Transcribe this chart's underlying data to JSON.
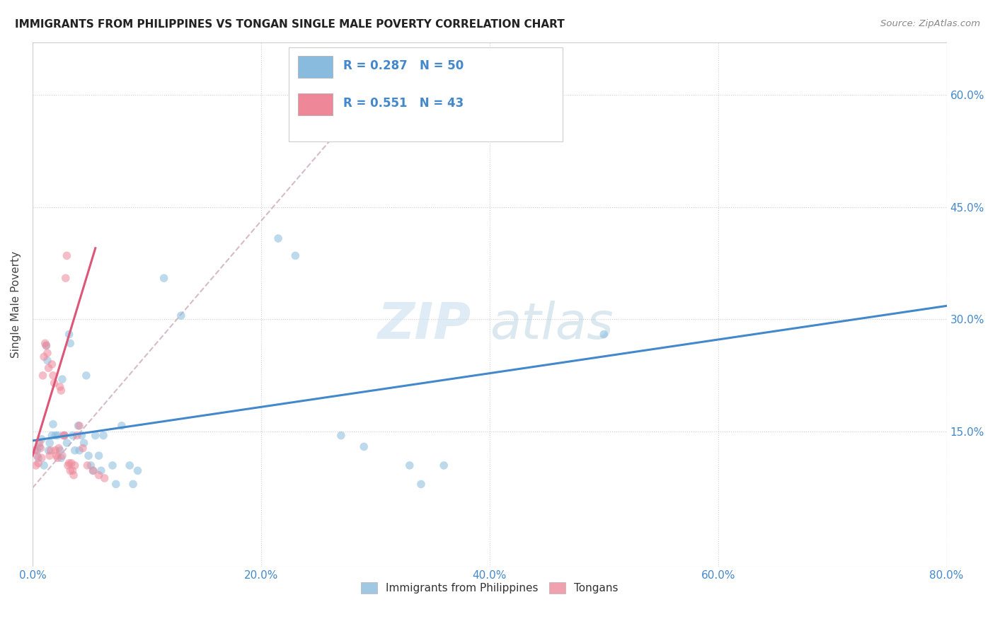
{
  "title": "IMMIGRANTS FROM PHILIPPINES VS TONGAN SINGLE MALE POVERTY CORRELATION CHART",
  "source": "Source: ZipAtlas.com",
  "xlabel_ticks": [
    "0.0%",
    "20.0%",
    "40.0%",
    "60.0%",
    "80.0%"
  ],
  "ylabel_ticks": [
    "15.0%",
    "30.0%",
    "45.0%",
    "60.0%"
  ],
  "ylabel_label": "Single Male Poverty",
  "xlim": [
    0.0,
    0.8
  ],
  "ylim": [
    -0.03,
    0.67
  ],
  "watermark_zip": "ZIP",
  "watermark_atlas": "atlas",
  "legend_entries": [
    {
      "label": "Immigrants from Philippines",
      "color": "#a8c8e8",
      "R": "0.287",
      "N": "50"
    },
    {
      "label": "Tongans",
      "color": "#f4a8b8",
      "R": "0.551",
      "N": "43"
    }
  ],
  "blue_scatter": [
    [
      0.004,
      0.125
    ],
    [
      0.005,
      0.115
    ],
    [
      0.006,
      0.13
    ],
    [
      0.008,
      0.14
    ],
    [
      0.01,
      0.105
    ],
    [
      0.012,
      0.265
    ],
    [
      0.013,
      0.245
    ],
    [
      0.014,
      0.125
    ],
    [
      0.015,
      0.135
    ],
    [
      0.017,
      0.145
    ],
    [
      0.018,
      0.16
    ],
    [
      0.02,
      0.145
    ],
    [
      0.022,
      0.145
    ],
    [
      0.024,
      0.125
    ],
    [
      0.025,
      0.115
    ],
    [
      0.026,
      0.22
    ],
    [
      0.028,
      0.145
    ],
    [
      0.03,
      0.135
    ],
    [
      0.032,
      0.28
    ],
    [
      0.033,
      0.268
    ],
    [
      0.035,
      0.145
    ],
    [
      0.037,
      0.125
    ],
    [
      0.04,
      0.158
    ],
    [
      0.041,
      0.125
    ],
    [
      0.043,
      0.145
    ],
    [
      0.045,
      0.135
    ],
    [
      0.047,
      0.225
    ],
    [
      0.049,
      0.118
    ],
    [
      0.051,
      0.105
    ],
    [
      0.053,
      0.098
    ],
    [
      0.055,
      0.145
    ],
    [
      0.058,
      0.118
    ],
    [
      0.06,
      0.098
    ],
    [
      0.062,
      0.145
    ],
    [
      0.07,
      0.105
    ],
    [
      0.073,
      0.08
    ],
    [
      0.078,
      0.158
    ],
    [
      0.085,
      0.105
    ],
    [
      0.088,
      0.08
    ],
    [
      0.092,
      0.098
    ],
    [
      0.115,
      0.355
    ],
    [
      0.13,
      0.305
    ],
    [
      0.215,
      0.408
    ],
    [
      0.23,
      0.385
    ],
    [
      0.27,
      0.145
    ],
    [
      0.29,
      0.13
    ],
    [
      0.33,
      0.105
    ],
    [
      0.34,
      0.08
    ],
    [
      0.36,
      0.105
    ],
    [
      0.5,
      0.28
    ]
  ],
  "pink_scatter": [
    [
      0.002,
      0.125
    ],
    [
      0.003,
      0.105
    ],
    [
      0.004,
      0.118
    ],
    [
      0.005,
      0.108
    ],
    [
      0.006,
      0.135
    ],
    [
      0.007,
      0.128
    ],
    [
      0.008,
      0.115
    ],
    [
      0.009,
      0.225
    ],
    [
      0.01,
      0.25
    ],
    [
      0.011,
      0.268
    ],
    [
      0.012,
      0.265
    ],
    [
      0.013,
      0.255
    ],
    [
      0.014,
      0.235
    ],
    [
      0.015,
      0.118
    ],
    [
      0.016,
      0.125
    ],
    [
      0.017,
      0.24
    ],
    [
      0.018,
      0.225
    ],
    [
      0.019,
      0.215
    ],
    [
      0.02,
      0.125
    ],
    [
      0.021,
      0.118
    ],
    [
      0.022,
      0.115
    ],
    [
      0.023,
      0.128
    ],
    [
      0.024,
      0.21
    ],
    [
      0.025,
      0.205
    ],
    [
      0.026,
      0.118
    ],
    [
      0.027,
      0.145
    ],
    [
      0.028,
      0.145
    ],
    [
      0.029,
      0.355
    ],
    [
      0.03,
      0.385
    ],
    [
      0.031,
      0.105
    ],
    [
      0.032,
      0.108
    ],
    [
      0.033,
      0.098
    ],
    [
      0.034,
      0.108
    ],
    [
      0.035,
      0.098
    ],
    [
      0.036,
      0.092
    ],
    [
      0.037,
      0.105
    ],
    [
      0.039,
      0.145
    ],
    [
      0.041,
      0.158
    ],
    [
      0.044,
      0.128
    ],
    [
      0.048,
      0.105
    ],
    [
      0.053,
      0.098
    ],
    [
      0.058,
      0.092
    ],
    [
      0.063,
      0.088
    ]
  ],
  "blue_line": [
    [
      0.0,
      0.138
    ],
    [
      0.8,
      0.318
    ]
  ],
  "pink_line_solid": [
    [
      0.0,
      0.118
    ],
    [
      0.055,
      0.395
    ]
  ],
  "pink_dashed_line": [
    [
      0.0,
      0.075
    ],
    [
      0.32,
      0.645
    ]
  ],
  "grid_yticks": [
    0.15,
    0.3,
    0.45,
    0.6
  ],
  "grid_xticks": [
    0.2,
    0.4,
    0.6,
    0.8
  ],
  "grid_color": "#d0d0d0",
  "background_color": "#ffffff",
  "scatter_size": 70,
  "scatter_alpha": 0.55,
  "blue_scatter_color": "#88bbdd",
  "pink_scatter_color": "#ee8899",
  "blue_line_color": "#4488cc",
  "pink_line_color": "#dd5577",
  "pink_dashed_color": "#ccaabb"
}
